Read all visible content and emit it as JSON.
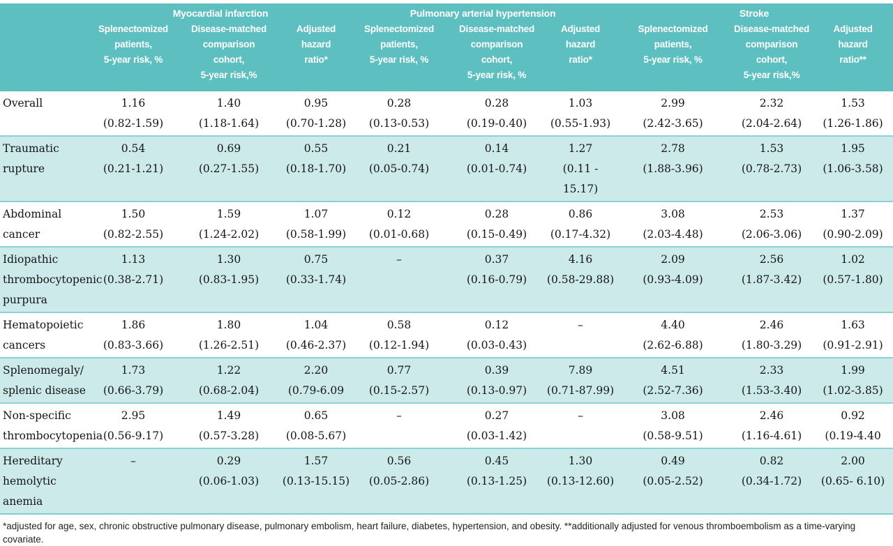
{
  "table": {
    "groups": [
      {
        "label": "Myocardial infarction",
        "span": 3
      },
      {
        "label": "Pulmonary arterial hypertension",
        "span": 3
      },
      {
        "label": "Stroke",
        "span": 3
      }
    ],
    "columns": [
      {
        "header": "Splenectomized\npatients,\n5-year risk, %"
      },
      {
        "header": "Disease-matched\ncomparison\ncohort,\n5-year risk,%"
      },
      {
        "header": "Adjusted\nhazard\nratio*"
      },
      {
        "header": "Splenectomized\npatients,\n5-year risk, %"
      },
      {
        "header": "Disease-matched\ncomparison\ncohort,\n5-year risk, %"
      },
      {
        "header": "Adjusted\nhazard\nratio*"
      },
      {
        "header": "Splenectomized\npatients,\n5-year risk, %"
      },
      {
        "header": "Disease-matched\ncomparison\ncohort,\n5-year risk,%"
      },
      {
        "header": "Adjusted\nhazard\nratio**"
      }
    ],
    "rows": [
      {
        "label": "Overall",
        "cells": [
          {
            "v": "1.16",
            "ci": "(0.82-1.59)"
          },
          {
            "v": "1.40",
            "ci": "(1.18-1.64)"
          },
          {
            "v": "0.95",
            "ci": "(0.70-1.28)"
          },
          {
            "v": "0.28",
            "ci": "(0.13-0.53)"
          },
          {
            "v": "0.28",
            "ci": "(0.19-0.40)"
          },
          {
            "v": "1.03",
            "ci": "(0.55-1.93)"
          },
          {
            "v": "2.99",
            "ci": "(2.42-3.65)"
          },
          {
            "v": "2.32",
            "ci": "(2.04-2.64)"
          },
          {
            "v": "1.53",
            "ci": "(1.26-1.86)"
          }
        ]
      },
      {
        "label": "Traumatic\nrupture",
        "cells": [
          {
            "v": "0.54",
            "ci": "(0.21-1.21)"
          },
          {
            "v": "0.69",
            "ci": "(0.27-1.55)"
          },
          {
            "v": "0.55",
            "ci": "(0.18-1.70)"
          },
          {
            "v": "0.21",
            "ci": "(0.05-0.74)"
          },
          {
            "v": "0.14",
            "ci": "(0.01-0.74)"
          },
          {
            "v": "1.27",
            "ci": "(0.11 - 15.17)"
          },
          {
            "v": "2.78",
            "ci": "(1.88-3.96)"
          },
          {
            "v": "1.53",
            "ci": "(0.78-2.73)"
          },
          {
            "v": "1.95",
            "ci": "(1.06-3.58)"
          }
        ]
      },
      {
        "label": "Abdominal\ncancer",
        "cells": [
          {
            "v": "1.50",
            "ci": "(0.82-2.55)"
          },
          {
            "v": "1.59",
            "ci": "(1.24-2.02)"
          },
          {
            "v": "1.07",
            "ci": "(0.58-1.99)"
          },
          {
            "v": "0.12",
            "ci": "(0.01-0.68)"
          },
          {
            "v": "0.28",
            "ci": "(0.15-0.49)"
          },
          {
            "v": "0.86",
            "ci": "(0.17-4.32)"
          },
          {
            "v": "3.08",
            "ci": "(2.03-4.48)"
          },
          {
            "v": "2.53",
            "ci": "(2.06-3.06)"
          },
          {
            "v": "1.37",
            "ci": "(0.90-2.09)"
          }
        ]
      },
      {
        "label": "Idiopathic\nthrombocytopenic\npurpura",
        "cells": [
          {
            "v": "1.13",
            "ci": "(0.38-2.71)"
          },
          {
            "v": "1.30",
            "ci": "(0.83-1.95)"
          },
          {
            "v": "0.75",
            "ci": "(0.33-1.74)"
          },
          {
            "v": "–",
            "ci": ""
          },
          {
            "v": "0.37",
            "ci": "(0.16-0.79)"
          },
          {
            "v": "4.16",
            "ci": "(0.58-29.88)"
          },
          {
            "v": "2.09",
            "ci": "(0.93-4.09)"
          },
          {
            "v": "2.56",
            "ci": "(1.87-3.42)"
          },
          {
            "v": "1.02",
            "ci": "(0.57-1.80)"
          }
        ]
      },
      {
        "label": "Hematopoietic\ncancers",
        "cells": [
          {
            "v": "1.86",
            "ci": "(0.83-3.66)"
          },
          {
            "v": "1.80",
            "ci": "(1.26-2.51)"
          },
          {
            "v": "1.04",
            "ci": "(0.46-2.37)"
          },
          {
            "v": "0.58",
            "ci": "(0.12-1.94)"
          },
          {
            "v": "0.12",
            "ci": "(0.03-0.43)"
          },
          {
            "v": "–",
            "ci": ""
          },
          {
            "v": "4.40",
            "ci": "(2.62-6.88)"
          },
          {
            "v": "2.46",
            "ci": "(1.80-3.29)"
          },
          {
            "v": "1.63",
            "ci": "(0.91-2.91)"
          }
        ]
      },
      {
        "label": "Splenomegaly/\nsplenic disease",
        "cells": [
          {
            "v": "1.73",
            "ci": "(0.66-3.79)"
          },
          {
            "v": "1.22",
            "ci": "(0.68-2.04)"
          },
          {
            "v": "2.20",
            "ci": "(0.79-6.09"
          },
          {
            "v": "0.77",
            "ci": "(0.15-2.57)"
          },
          {
            "v": "0.39",
            "ci": "(0.13-0.97)"
          },
          {
            "v": "7.89",
            "ci": "(0.71-87.99)"
          },
          {
            "v": "4.51",
            "ci": "(2.52-7.36)"
          },
          {
            "v": "2.33",
            "ci": "(1.53-3.40)"
          },
          {
            "v": "1.99",
            "ci": "(1.02-3.85)"
          }
        ]
      },
      {
        "label": "Non-specific\nthrombocytopenia",
        "cells": [
          {
            "v": "2.95",
            "ci": "(0.56-9.17)"
          },
          {
            "v": "1.49",
            "ci": "(0.57-3.28)"
          },
          {
            "v": "0.65",
            "ci": "(0.08-5.67)"
          },
          {
            "v": "–",
            "ci": ""
          },
          {
            "v": "0.27",
            "ci": "(0.03-1.42)"
          },
          {
            "v": "–",
            "ci": ""
          },
          {
            "v": "3.08",
            "ci": "(0.58-9.51)"
          },
          {
            "v": "2.46",
            "ci": "(1.16-4.61)"
          },
          {
            "v": "0.92",
            "ci": "(0.19-4.40"
          }
        ]
      },
      {
        "label": "Hereditary\nhemolytic\nanemia",
        "cells": [
          {
            "v": "–",
            "ci": ""
          },
          {
            "v": "0.29",
            "ci": "(0.06-1.03)"
          },
          {
            "v": "1.57",
            "ci": "(0.13-15.15)"
          },
          {
            "v": "0.56",
            "ci": "(0.05-2.86)"
          },
          {
            "v": "0.45",
            "ci": "(0.13-1.25)"
          },
          {
            "v": "1.30",
            "ci": "(0.13-12.60)"
          },
          {
            "v": "0.49",
            "ci": "(0.05-2.52)"
          },
          {
            "v": "0.82",
            "ci": "(0.34-1.72)"
          },
          {
            "v": "2.00",
            "ci": "(0.65- 6.10)"
          }
        ]
      }
    ]
  },
  "footnote": "*adjusted for age, sex, chronic obstructive pulmonary disease, pulmonary embolism, heart failure, diabetes, hypertension, and obesity.  **additionally adjusted for venous thromboembolism as a time-varying covariate.",
  "colors": {
    "header_teal": "#5ebfc1",
    "band_teal": "#cdeaea",
    "separator_teal": "#8ad2d3",
    "text": "#151515"
  }
}
